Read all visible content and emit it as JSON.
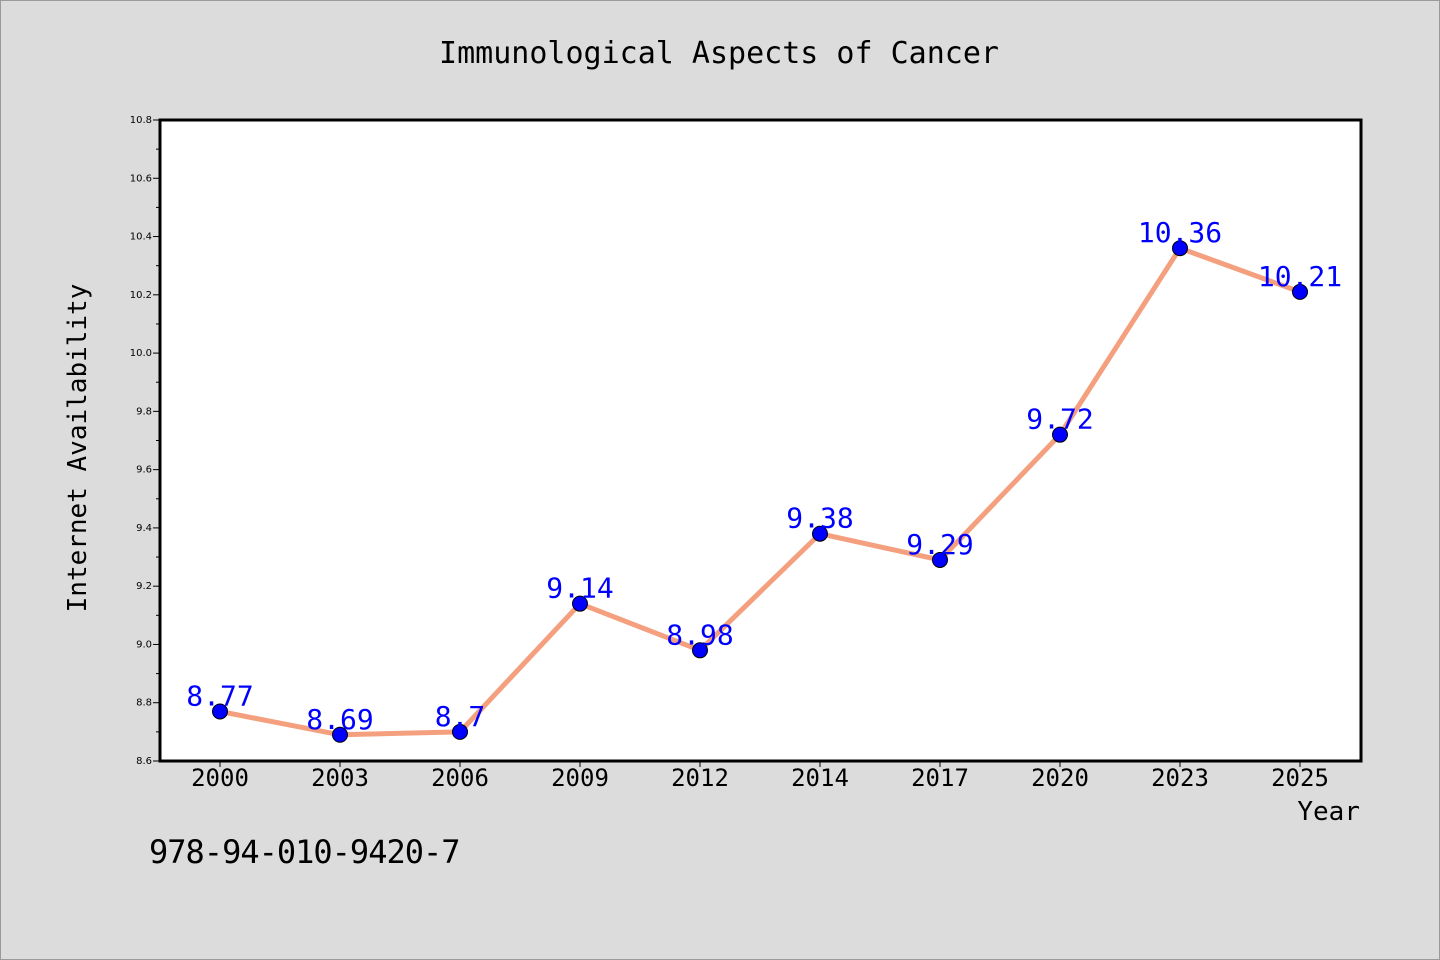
{
  "isbn": "978-94-010-9420-7",
  "colors": {
    "background": "#dcdcdc",
    "plot_background": "#ffffff",
    "line": "#f4a07f",
    "marker": "#0000ff",
    "label": "#0000ff"
  },
  "chart_data": {
    "type": "line",
    "title": "Immunological Aspects of Cancer",
    "xlabel": "Year",
    "ylabel": "Internet Availability",
    "categories": [
      "2000",
      "2003",
      "2006",
      "2009",
      "2012",
      "2014",
      "2017",
      "2020",
      "2023",
      "2025"
    ],
    "series": [
      {
        "values": [
          8.77,
          8.69,
          8.7,
          9.14,
          8.98,
          9.38,
          9.29,
          9.72,
          10.36,
          10.21
        ],
        "labels": [
          "8.77",
          "8.69",
          "8.7",
          "9.14",
          "8.98",
          "9.38",
          "9.29",
          "9.72",
          "10.36",
          "10.21"
        ]
      }
    ],
    "ylim": [
      8.6,
      10.8
    ],
    "yticks": [
      "8.6",
      "8.8",
      "9.0",
      "9.2",
      "9.4",
      "9.6",
      "9.8",
      "10.0",
      "10.2",
      "10.4",
      "10.6",
      "10.8"
    ],
    "grid": false,
    "legend": "none"
  }
}
